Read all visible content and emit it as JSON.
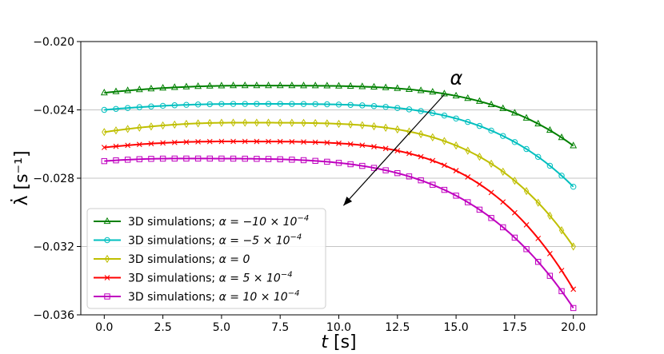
{
  "chart_data": {
    "type": "line",
    "xlabel": "t [s]",
    "ylabel": "λ̇ [s⁻¹]",
    "xlim": [
      -1,
      21
    ],
    "ylim": [
      -0.036,
      -0.02
    ],
    "xticks": [
      0.0,
      2.5,
      5.0,
      7.5,
      10.0,
      12.5,
      15.0,
      17.5,
      20.0
    ],
    "xtick_labels": [
      "0.0",
      "2.5",
      "5.0",
      "7.5",
      "10.0",
      "12.5",
      "15.0",
      "17.5",
      "20.0"
    ],
    "yticks": [
      -0.02,
      -0.024,
      -0.028,
      -0.032,
      -0.036
    ],
    "ytick_labels": [
      "−0.020",
      "−0.024",
      "−0.028",
      "−0.032",
      "−0.036"
    ],
    "grid": "horizontal",
    "legend_position": "lower-left",
    "annotation": {
      "text": "α",
      "arrow_from": [
        14.5,
        -0.0231
      ],
      "arrow_to": [
        10.2,
        -0.0296
      ]
    },
    "series": [
      {
        "name": "3D simulations; α = −10×10⁻⁴",
        "label_prefix": "3D simulations; ",
        "label_math": "α = −10 × 10",
        "label_exp": "−4",
        "color": "#008000",
        "marker": "triangle",
        "start": -0.023,
        "peak": -0.02258,
        "peak_t": 6.0,
        "end": -0.0261
      },
      {
        "name": "3D simulations; α = −5×10⁻⁴",
        "label_prefix": "3D simulations; ",
        "label_math": "α = −5 × 10",
        "label_exp": "−4",
        "color": "#00bfbf",
        "marker": "circle",
        "start": -0.024,
        "peak": -0.02365,
        "peak_t": 5.8,
        "end": -0.0285
      },
      {
        "name": "3D simulations; α = 0",
        "label_prefix": "3D simulations; ",
        "label_math": "α = 0",
        "label_exp": "",
        "color": "#bfbf00",
        "marker": "diamond",
        "start": -0.0253,
        "peak": -0.02475,
        "peak_t": 5.5,
        "end": -0.032
      },
      {
        "name": "3D simulations; α = 5×10⁻⁴",
        "label_prefix": "3D simulations; ",
        "label_math": "α = 5 × 10",
        "label_exp": "−4",
        "color": "#ff0000",
        "marker": "x",
        "start": -0.0262,
        "peak": -0.02585,
        "peak_t": 5.0,
        "end": -0.0345
      },
      {
        "name": "3D simulations; α = 10×10⁻⁴",
        "label_prefix": "3D simulations; ",
        "label_math": "α = 10 × 10",
        "label_exp": "−4",
        "color": "#bf00bf",
        "marker": "square",
        "start": -0.027,
        "peak": -0.02685,
        "peak_t": 3.0,
        "end": -0.0356
      }
    ]
  }
}
